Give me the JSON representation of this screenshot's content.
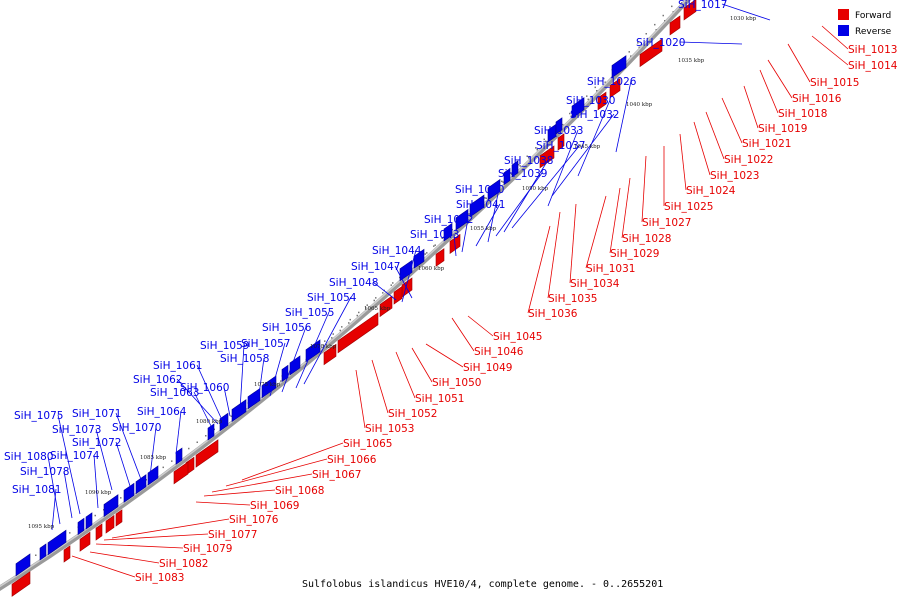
{
  "colors": {
    "forward": "#e60000",
    "reverse": "#0000e6",
    "axis": "#888888"
  },
  "legend": {
    "forward": "Forward",
    "reverse": "Reverse"
  },
  "caption": "Sulfolobus islandicus HVE10/4, complete genome. - 0..2655201",
  "kbp_ticks": [
    "1030 kbp",
    "1035 kbp",
    "1040 kbp",
    "1045 kbp",
    "1050 kbp",
    "1055 kbp",
    "1060 kbp",
    "1065 kbp",
    "1070 kbp",
    "1075 kbp",
    "1080 kbp",
    "1085 kbp",
    "1090 kbp",
    "1095 kbp"
  ],
  "genes_forward": [
    "SiH_1013",
    "SiH_1014",
    "SiH_1015",
    "SiH_1016",
    "SiH_1018",
    "SiH_1019",
    "SiH_1021",
    "SiH_1022",
    "SiH_1023",
    "SiH_1024",
    "SiH_1025",
    "SiH_1027",
    "SiH_1028",
    "SiH_1029",
    "SiH_1031",
    "SiH_1034",
    "SiH_1035",
    "SiH_1036",
    "SiH_1045",
    "SiH_1046",
    "SiH_1049",
    "SiH_1050",
    "SiH_1051",
    "SiH_1052",
    "SiH_1053",
    "SiH_1065",
    "SiH_1066",
    "SiH_1067",
    "SiH_1068",
    "SiH_1069",
    "SiH_1076",
    "SiH_1077",
    "SiH_1079",
    "SiH_1082",
    "SiH_1083"
  ],
  "genes_reverse": [
    "SiH_1017",
    "SiH_1020",
    "SiH_1026",
    "SiH_1030",
    "SiH_1032",
    "SiH_1033",
    "SiH_1037",
    "SiH_1038",
    "SiH_1039",
    "SiH_1040",
    "SiH_1041",
    "SiH_1042",
    "SiH_1043",
    "SiH_1044",
    "SiH_1047",
    "SiH_1048",
    "SiH_1054",
    "SiH_1055",
    "SiH_1056",
    "SiH_1057",
    "SiH_1058",
    "SiH_1059",
    "SiH_1060",
    "SiH_1061",
    "SiH_1062",
    "SiH_1063",
    "SiH_1064",
    "SiH_1070",
    "SiH_1071",
    "SiH_1072",
    "SiH_1073",
    "SiH_1074",
    "SiH_1075",
    "SiH_1078",
    "SiH_1080",
    "SiH_1081"
  ]
}
